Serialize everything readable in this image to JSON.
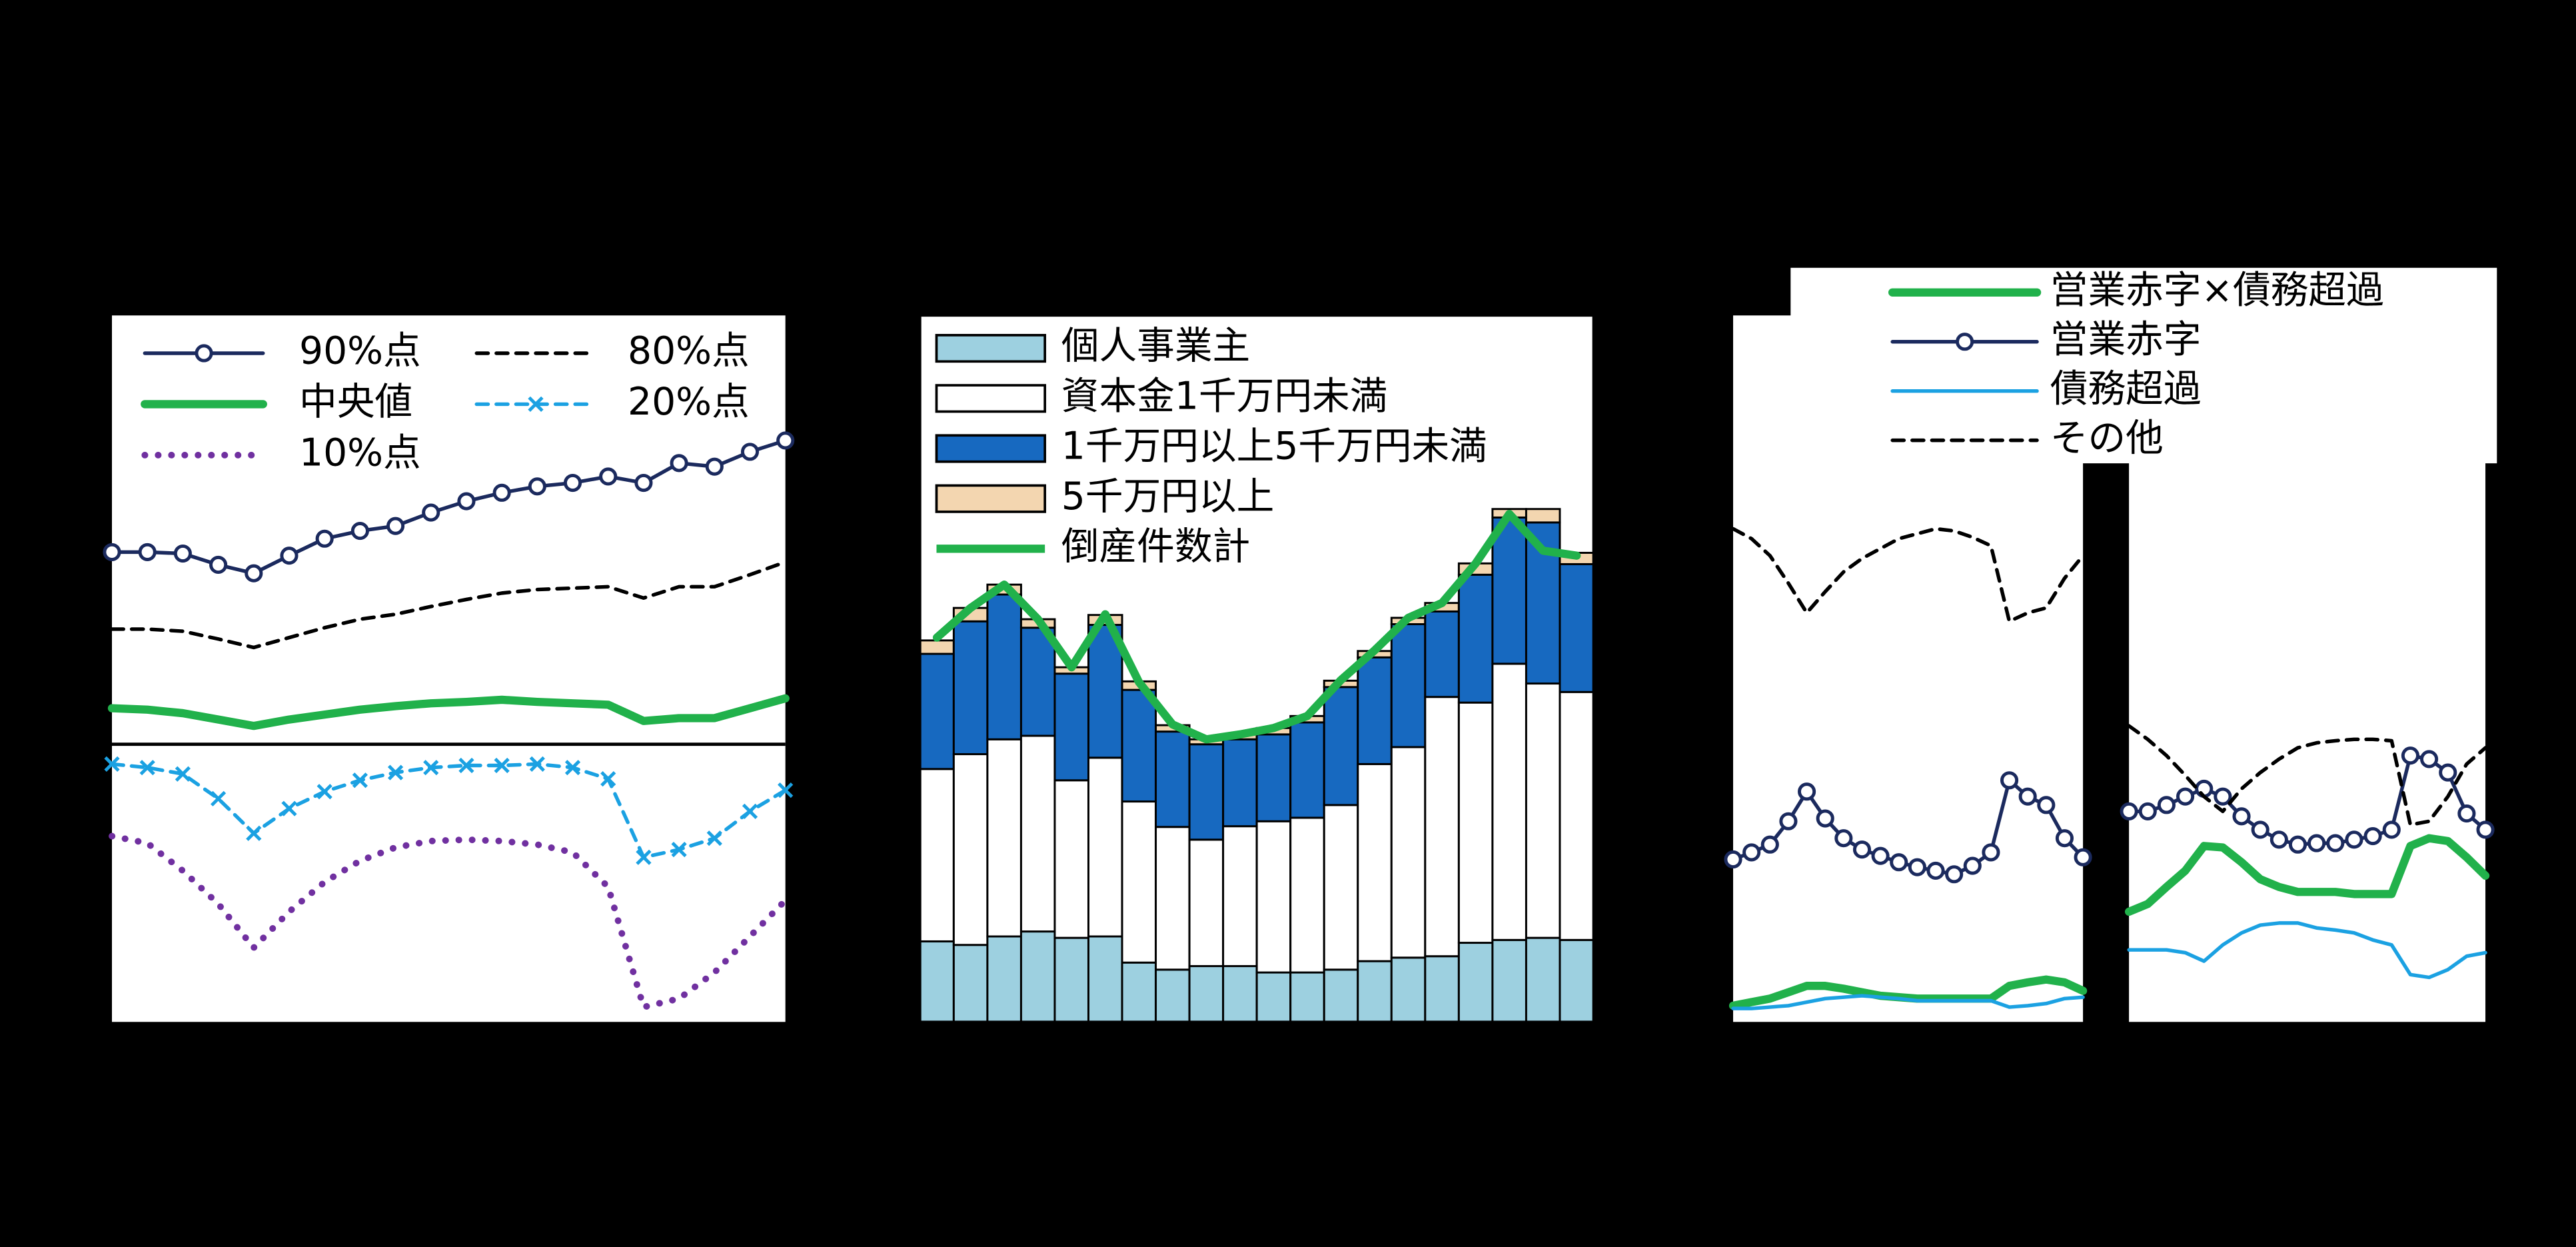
{
  "chart_data": [
    {
      "type": "line",
      "ylim": [
        0,
        100
      ],
      "reference_line": 39.3,
      "series": [
        {
          "name": "90%点",
          "color": "#1b2a5e",
          "dash": "solid",
          "marker": "circle",
          "values": [
            66.5,
            66.5,
            66.3,
            64.7,
            63.5,
            66.0,
            68.4,
            69.5,
            70.2,
            72.1,
            73.7,
            74.9,
            75.8,
            76.3,
            77.2,
            76.3,
            79.1,
            78.6,
            80.7,
            82.3
          ]
        },
        {
          "name": "80%点",
          "color": "#000000",
          "dash": "dashed",
          "values": [
            55.6,
            55.6,
            55.3,
            54.2,
            53.0,
            54.4,
            55.8,
            57.0,
            57.7,
            58.8,
            59.8,
            60.7,
            61.2,
            61.4,
            61.6,
            60.0,
            61.6,
            61.6,
            63.3,
            65.1
          ]
        },
        {
          "name": "中央値",
          "color": "#21b14b",
          "dash": "solid",
          "bold": true,
          "values": [
            44.4,
            44.2,
            43.7,
            42.8,
            41.9,
            42.8,
            43.5,
            44.2,
            44.7,
            45.1,
            45.3,
            45.6,
            45.3,
            45.1,
            44.9,
            42.6,
            43.0,
            43.0,
            44.4,
            45.8
          ]
        },
        {
          "name": "20%点",
          "color": "#1ba1e2",
          "dash": "dashed",
          "marker": "x",
          "values": [
            36.5,
            36.0,
            35.1,
            31.6,
            26.7,
            30.2,
            32.6,
            34.2,
            35.3,
            36.0,
            36.3,
            36.3,
            36.5,
            36.0,
            34.4,
            23.3,
            24.4,
            26.0,
            29.8,
            32.8
          ]
        },
        {
          "name": "10%点",
          "color": "#7030a0",
          "dash": "dotted",
          "values": [
            26.3,
            25.3,
            21.4,
            16.7,
            10.5,
            15.6,
            19.8,
            22.8,
            24.7,
            25.6,
            25.8,
            25.6,
            25.1,
            24.0,
            19.1,
            2.1,
            3.3,
            7.0,
            12.1,
            17.2
          ]
        }
      ]
    },
    {
      "type": "stacked_bar_line",
      "ylim": [
        0,
        100
      ],
      "series": [
        {
          "name": "個人事業主",
          "color": "#9dd0e0",
          "values": [
            11.4,
            10.9,
            12.1,
            12.8,
            11.9,
            12.1,
            8.4,
            7.4,
            7.9,
            7.9,
            7.0,
            7.0,
            7.4,
            8.6,
            9.1,
            9.3,
            11.2,
            11.6,
            11.9,
            11.6
          ]
        },
        {
          "name": "資本金1千万円未満",
          "color": "#ffffff",
          "values": [
            24.4,
            27.0,
            27.9,
            27.7,
            22.3,
            25.3,
            22.8,
            20.2,
            17.9,
            19.8,
            21.4,
            21.9,
            23.3,
            27.9,
            29.8,
            36.7,
            34.0,
            39.1,
            36.0,
            35.1
          ]
        },
        {
          "name": "1千万円以上5千万円未満",
          "color": "#1769c0",
          "values": [
            16.3,
            18.8,
            20.5,
            15.3,
            15.1,
            18.8,
            15.8,
            13.5,
            13.5,
            12.3,
            12.3,
            13.5,
            16.7,
            15.1,
            17.4,
            12.1,
            18.1,
            20.7,
            22.8,
            18.1
          ]
        },
        {
          "name": "5千万円以上",
          "color": "#f3d6b0",
          "values": [
            1.9,
            1.9,
            1.4,
            1.2,
            0.9,
            1.4,
            1.2,
            0.9,
            0.7,
            0.7,
            0.9,
            0.9,
            0.9,
            0.9,
            0.9,
            1.2,
            1.6,
            1.2,
            1.9,
            1.6
          ]
        },
        {
          "name": "倒産件数計",
          "color": "#21b14b",
          "type": "line",
          "values": [
            54.4,
            58.6,
            61.9,
            57.0,
            50.2,
            57.7,
            48.1,
            42.1,
            40.0,
            40.7,
            41.6,
            43.3,
            48.4,
            52.6,
            57.2,
            59.3,
            64.9,
            71.9,
            66.7,
            66.0
          ]
        }
      ]
    },
    {
      "type": "line",
      "ylim": [
        0,
        100
      ],
      "series": [
        {
          "name": "営業赤字×債務超過",
          "color": "#21b14b",
          "dash": "solid",
          "bold": true
        },
        {
          "name": "営業赤字",
          "color": "#1b2a5e",
          "dash": "solid",
          "marker": "circle"
        },
        {
          "name": "債務超過",
          "color": "#1ba1e2",
          "dash": "solid"
        },
        {
          "name": "その他",
          "color": "#000000",
          "dash": "dashed"
        }
      ],
      "panels": [
        {
          "series": [
            {
              "values": [
                2.3,
                2.8,
                3.3,
                4.2,
                5.1,
                5.1,
                4.7,
                4.2,
                3.7,
                3.5,
                3.3,
                3.3,
                3.3,
                3.3,
                3.3,
                5.1,
                5.6,
                6.0,
                5.6,
                4.4
              ]
            },
            {
              "values": [
                23.0,
                24.0,
                25.1,
                28.4,
                32.6,
                28.8,
                26.0,
                24.4,
                23.5,
                22.6,
                21.9,
                21.4,
                20.9,
                22.1,
                24.0,
                34.2,
                31.9,
                30.7,
                26.0,
                23.3
              ]
            },
            {
              "values": [
                1.9,
                1.9,
                2.1,
                2.3,
                2.8,
                3.3,
                3.5,
                3.7,
                3.5,
                3.3,
                3.0,
                3.0,
                3.0,
                3.0,
                3.0,
                2.1,
                2.3,
                2.6,
                3.3,
                3.5
              ]
            },
            {
              "values": [
                69.8,
                68.4,
                66.0,
                62.1,
                57.9,
                60.9,
                63.7,
                65.6,
                67.0,
                68.4,
                69.1,
                69.8,
                69.5,
                68.6,
                67.4,
                56.7,
                57.9,
                58.6,
                62.8,
                66.0
              ]
            }
          ]
        },
        {
          "series": [
            {
              "values": [
                15.6,
                16.7,
                19.1,
                21.4,
                24.9,
                24.7,
                22.6,
                20.2,
                19.1,
                18.4,
                18.4,
                18.4,
                18.1,
                18.1,
                18.1,
                24.9,
                26.0,
                25.6,
                23.3,
                20.7
              ]
            },
            {
              "values": [
                29.8,
                29.8,
                30.7,
                31.9,
                33.0,
                31.9,
                29.1,
                27.2,
                25.8,
                25.1,
                25.3,
                25.3,
                25.8,
                26.3,
                27.2,
                37.7,
                37.2,
                35.3,
                29.5,
                27.2
              ]
            },
            {
              "values": [
                10.2,
                10.2,
                10.2,
                9.8,
                8.6,
                10.9,
                12.6,
                13.7,
                14.0,
                14.0,
                13.3,
                13.0,
                12.6,
                11.6,
                10.9,
                6.7,
                6.3,
                7.4,
                9.3,
                9.8
              ]
            },
            {
              "values": [
                41.9,
                40.0,
                37.7,
                34.9,
                31.9,
                29.8,
                33.0,
                35.3,
                37.2,
                38.8,
                39.5,
                39.8,
                40.0,
                40.0,
                39.8,
                27.9,
                28.4,
                31.9,
                36.5,
                38.8
              ]
            }
          ]
        }
      ]
    }
  ]
}
